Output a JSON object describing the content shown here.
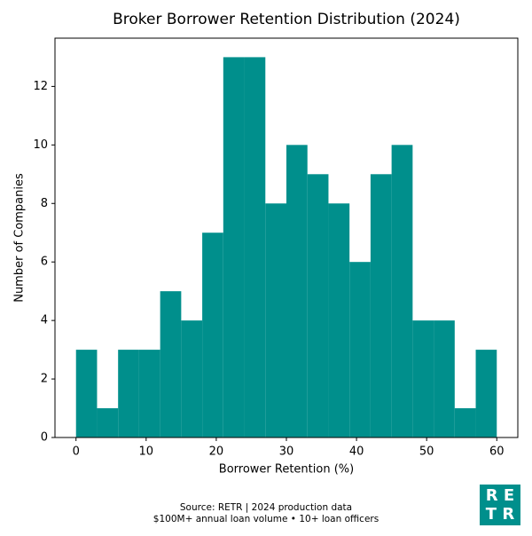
{
  "chart_data": {
    "type": "histogram",
    "title": "Broker Borrower Retention Distribution (2024)",
    "x_label": "Borrower Retention (%)",
    "y_label": "Number of Companies",
    "bins": [
      0,
      3,
      6,
      9,
      12,
      15,
      18,
      21,
      24,
      27,
      30,
      33,
      36,
      39,
      42,
      45,
      48,
      51,
      54,
      57,
      60
    ],
    "values": [
      3,
      1,
      3,
      3,
      5,
      4,
      7,
      13,
      13,
      8,
      10,
      9,
      8,
      6,
      9,
      10,
      4,
      4,
      1,
      3
    ],
    "color": "#008f8c",
    "xlim": [
      -3,
      63
    ],
    "xticks": [
      0,
      10,
      20,
      30,
      40,
      50,
      60
    ],
    "ylim": [
      0,
      13.65
    ],
    "yticks": [
      0,
      2,
      4,
      6,
      8,
      10,
      12
    ],
    "grid": false
  },
  "footer": {
    "source": "Source: RETR | 2024 production data",
    "note": "$100M+ annual loan volume • 10+ loan officers"
  },
  "logo": {
    "line1": "R E",
    "line2": "T R"
  }
}
